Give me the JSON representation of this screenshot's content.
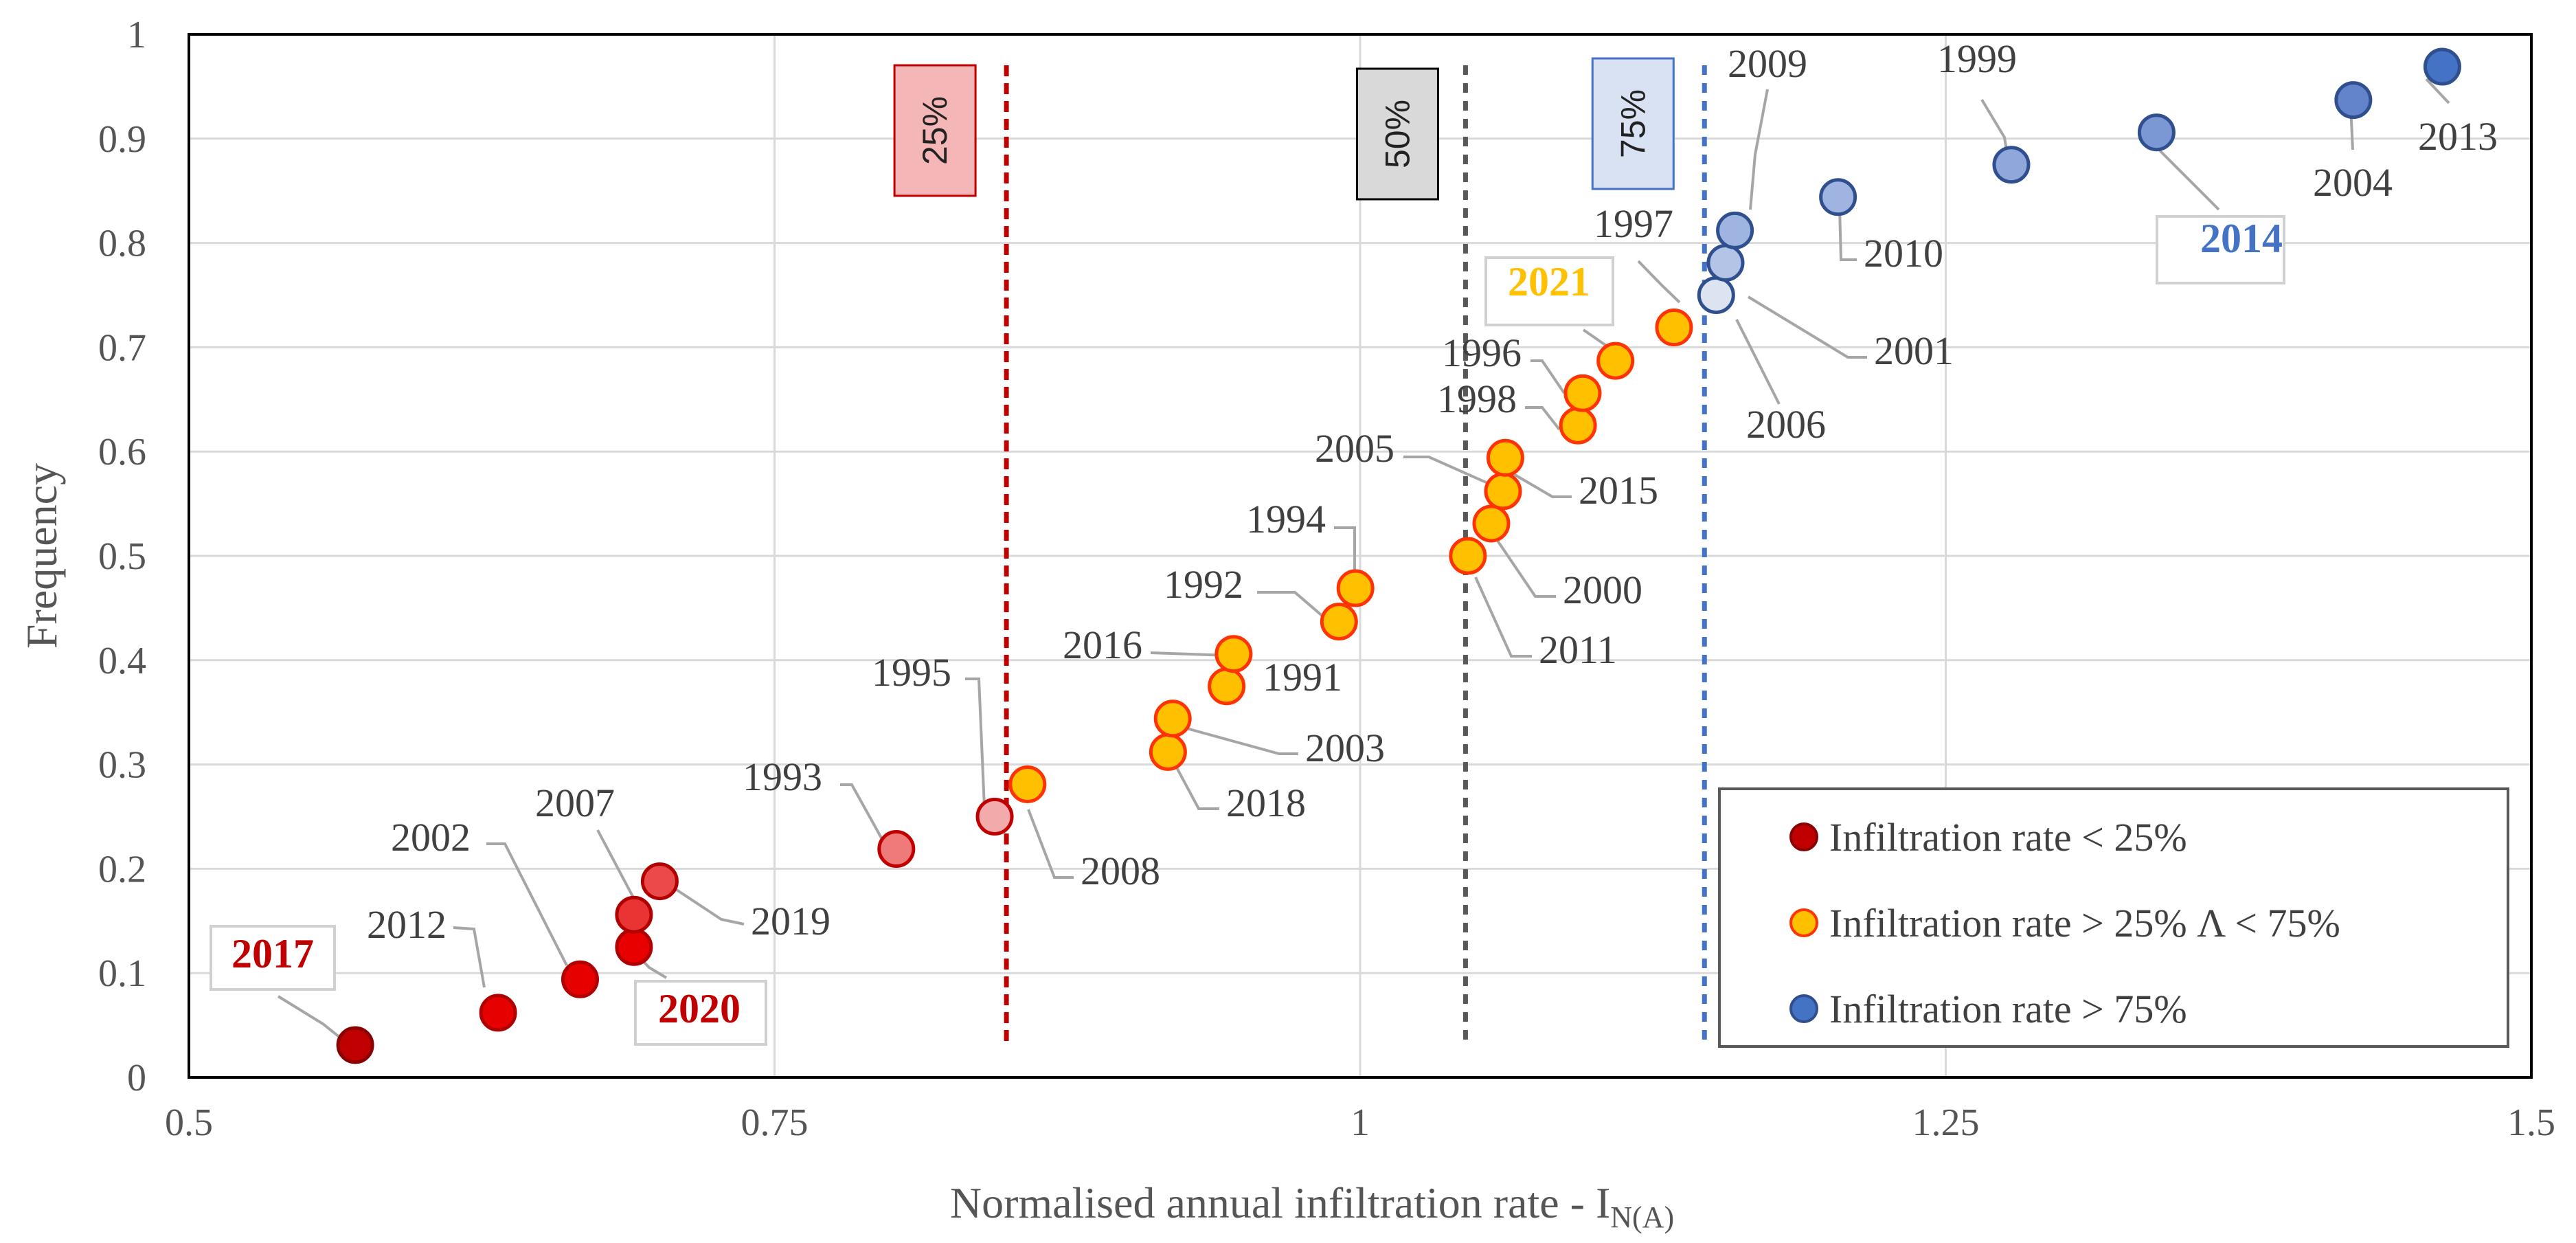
{
  "chart_data": {
    "type": "scatter",
    "xlabel": "Normalised annual infiltration rate - I",
    "xlabel_sub": "N(A)",
    "ylabel": "Frequency",
    "xlim": [
      0.5,
      1.5
    ],
    "ylim": [
      0,
      1
    ],
    "x_ticks": [
      "0.5",
      "0.75",
      "1",
      "1.25",
      "1.5"
    ],
    "y_ticks": [
      "0",
      "0.1",
      "0.2",
      "0.3",
      "0.4",
      "0.5",
      "0.6",
      "0.7",
      "0.8",
      "0.9",
      "1"
    ],
    "grid": true,
    "thresholds": [
      {
        "name": "25%",
        "x": 0.849,
        "color": "#c00000",
        "label_bg": "#f4b6b6",
        "label_border": "#c00000"
      },
      {
        "name": "50%",
        "x": 1.045,
        "color": "#595959",
        "label_bg": "#d9d9d9",
        "label_border": "#000000"
      },
      {
        "name": "75%",
        "x": 1.147,
        "color": "#4472c4",
        "label_bg": "#d9e2f3",
        "label_border": "#4472c4"
      }
    ],
    "points": [
      {
        "year": "2017",
        "x": 0.571,
        "y": 0.031,
        "fill": "#c00000",
        "stroke": "#8b0000",
        "label_color": "#c00000",
        "bold": true,
        "boxed": true
      },
      {
        "year": "2012",
        "x": 0.632,
        "y": 0.062,
        "fill": "#e60000",
        "stroke": "#b00000",
        "label_color": "#404040"
      },
      {
        "year": "2002",
        "x": 0.667,
        "y": 0.094,
        "fill": "#e60000",
        "stroke": "#b00000",
        "label_color": "#404040"
      },
      {
        "year": "2020",
        "x": 0.69,
        "y": 0.125,
        "fill": "#e80000",
        "stroke": "#b00000",
        "label_color": "#c00000",
        "bold": true,
        "boxed": true
      },
      {
        "year": "2007",
        "x": 0.69,
        "y": 0.156,
        "fill": "#ea3434",
        "stroke": "#b00000",
        "label_color": "#404040"
      },
      {
        "year": "2019",
        "x": 0.701,
        "y": 0.188,
        "fill": "#ec4a4a",
        "stroke": "#b00000",
        "label_color": "#404040"
      },
      {
        "year": "1993",
        "x": 0.802,
        "y": 0.219,
        "fill": "#ee7a7a",
        "stroke": "#c00000",
        "label_color": "#404040"
      },
      {
        "year": "1995",
        "x": 0.844,
        "y": 0.25,
        "fill": "#f3aaaa",
        "stroke": "#c00000",
        "label_color": "#404040"
      },
      {
        "year": "2008",
        "x": 0.858,
        "y": 0.281,
        "fill": "#ffc000",
        "stroke": "#ff3300",
        "label_color": "#404040"
      },
      {
        "year": "2018",
        "x": 0.918,
        "y": 0.312,
        "fill": "#ffc000",
        "stroke": "#ff3300",
        "label_color": "#404040"
      },
      {
        "year": "2003",
        "x": 0.92,
        "y": 0.344,
        "fill": "#ffc000",
        "stroke": "#ff3300",
        "label_color": "#404040"
      },
      {
        "year": "1991",
        "x": 0.943,
        "y": 0.375,
        "fill": "#ffc000",
        "stroke": "#ff3300",
        "label_color": "#404040"
      },
      {
        "year": "2016",
        "x": 0.946,
        "y": 0.406,
        "fill": "#ffc000",
        "stroke": "#ff3300",
        "label_color": "#404040"
      },
      {
        "year": "1992",
        "x": 0.991,
        "y": 0.437,
        "fill": "#ffc000",
        "stroke": "#ff3300",
        "label_color": "#404040"
      },
      {
        "year": "1994",
        "x": 0.998,
        "y": 0.469,
        "fill": "#ffc000",
        "stroke": "#ff3300",
        "label_color": "#404040"
      },
      {
        "year": "2011",
        "x": 1.046,
        "y": 0.5,
        "fill": "#ffc000",
        "stroke": "#ff3300",
        "label_color": "#404040"
      },
      {
        "year": "2000",
        "x": 1.056,
        "y": 0.531,
        "fill": "#ffc000",
        "stroke": "#ff3300",
        "label_color": "#404040"
      },
      {
        "year": "2005",
        "x": 1.061,
        "y": 0.562,
        "fill": "#ffc000",
        "stroke": "#ff3300",
        "label_color": "#404040"
      },
      {
        "year": "2015",
        "x": 1.062,
        "y": 0.594,
        "fill": "#ffc000",
        "stroke": "#ff3300",
        "label_color": "#404040"
      },
      {
        "year": "1998",
        "x": 1.093,
        "y": 0.625,
        "fill": "#ffc000",
        "stroke": "#ff3300",
        "label_color": "#404040"
      },
      {
        "year": "1996",
        "x": 1.095,
        "y": 0.656,
        "fill": "#ffc000",
        "stroke": "#ff3300",
        "label_color": "#404040"
      },
      {
        "year": "2021",
        "x": 1.109,
        "y": 0.687,
        "fill": "#ffc000",
        "stroke": "#ff3300",
        "label_color": "#ffc000",
        "bold": true,
        "boxed": true
      },
      {
        "year": "1997",
        "x": 1.134,
        "y": 0.719,
        "fill": "#ffc000",
        "stroke": "#ff3300",
        "label_color": "#404040"
      },
      {
        "year": "2006",
        "x": 1.152,
        "y": 0.75,
        "fill": "#dce3f1",
        "stroke": "#2f4f8f",
        "label_color": "#404040"
      },
      {
        "year": "2001",
        "x": 1.156,
        "y": 0.781,
        "fill": "#b4c4e6",
        "stroke": "#2f4f8f",
        "label_color": "#404040"
      },
      {
        "year": "2009",
        "x": 1.16,
        "y": 0.812,
        "fill": "#9fb4e0",
        "stroke": "#2f4f8f",
        "label_color": "#404040"
      },
      {
        "year": "2010",
        "x": 1.204,
        "y": 0.844,
        "fill": "#9fb4e0",
        "stroke": "#2f4f8f",
        "label_color": "#404040"
      },
      {
        "year": "1999",
        "x": 1.278,
        "y": 0.875,
        "fill": "#8fa7db",
        "stroke": "#2f4f8f",
        "label_color": "#404040"
      },
      {
        "year": "2014",
        "x": 1.34,
        "y": 0.906,
        "fill": "#7b97d4",
        "stroke": "#2f4f8f",
        "label_color": "#4472c4",
        "bold": true,
        "boxed": true
      },
      {
        "year": "2004",
        "x": 1.424,
        "y": 0.937,
        "fill": "#6384ca",
        "stroke": "#2f4f8f",
        "label_color": "#404040"
      },
      {
        "year": "2013",
        "x": 1.462,
        "y": 0.969,
        "fill": "#4472c4",
        "stroke": "#2f4f8f",
        "label_color": "#404040"
      }
    ],
    "legend": {
      "placement": "bottom-right",
      "entries": [
        {
          "label": "Infiltration rate < 25%",
          "fill": "#c00000",
          "stroke": "#8b0000"
        },
        {
          "label": "Infiltration rate > 25% Λ < 75%",
          "fill": "#ffc000",
          "stroke": "#ff3300"
        },
        {
          "label": "Infiltration rate > 75%",
          "fill": "#4472c4",
          "stroke": "#2f4f8f"
        }
      ]
    }
  }
}
